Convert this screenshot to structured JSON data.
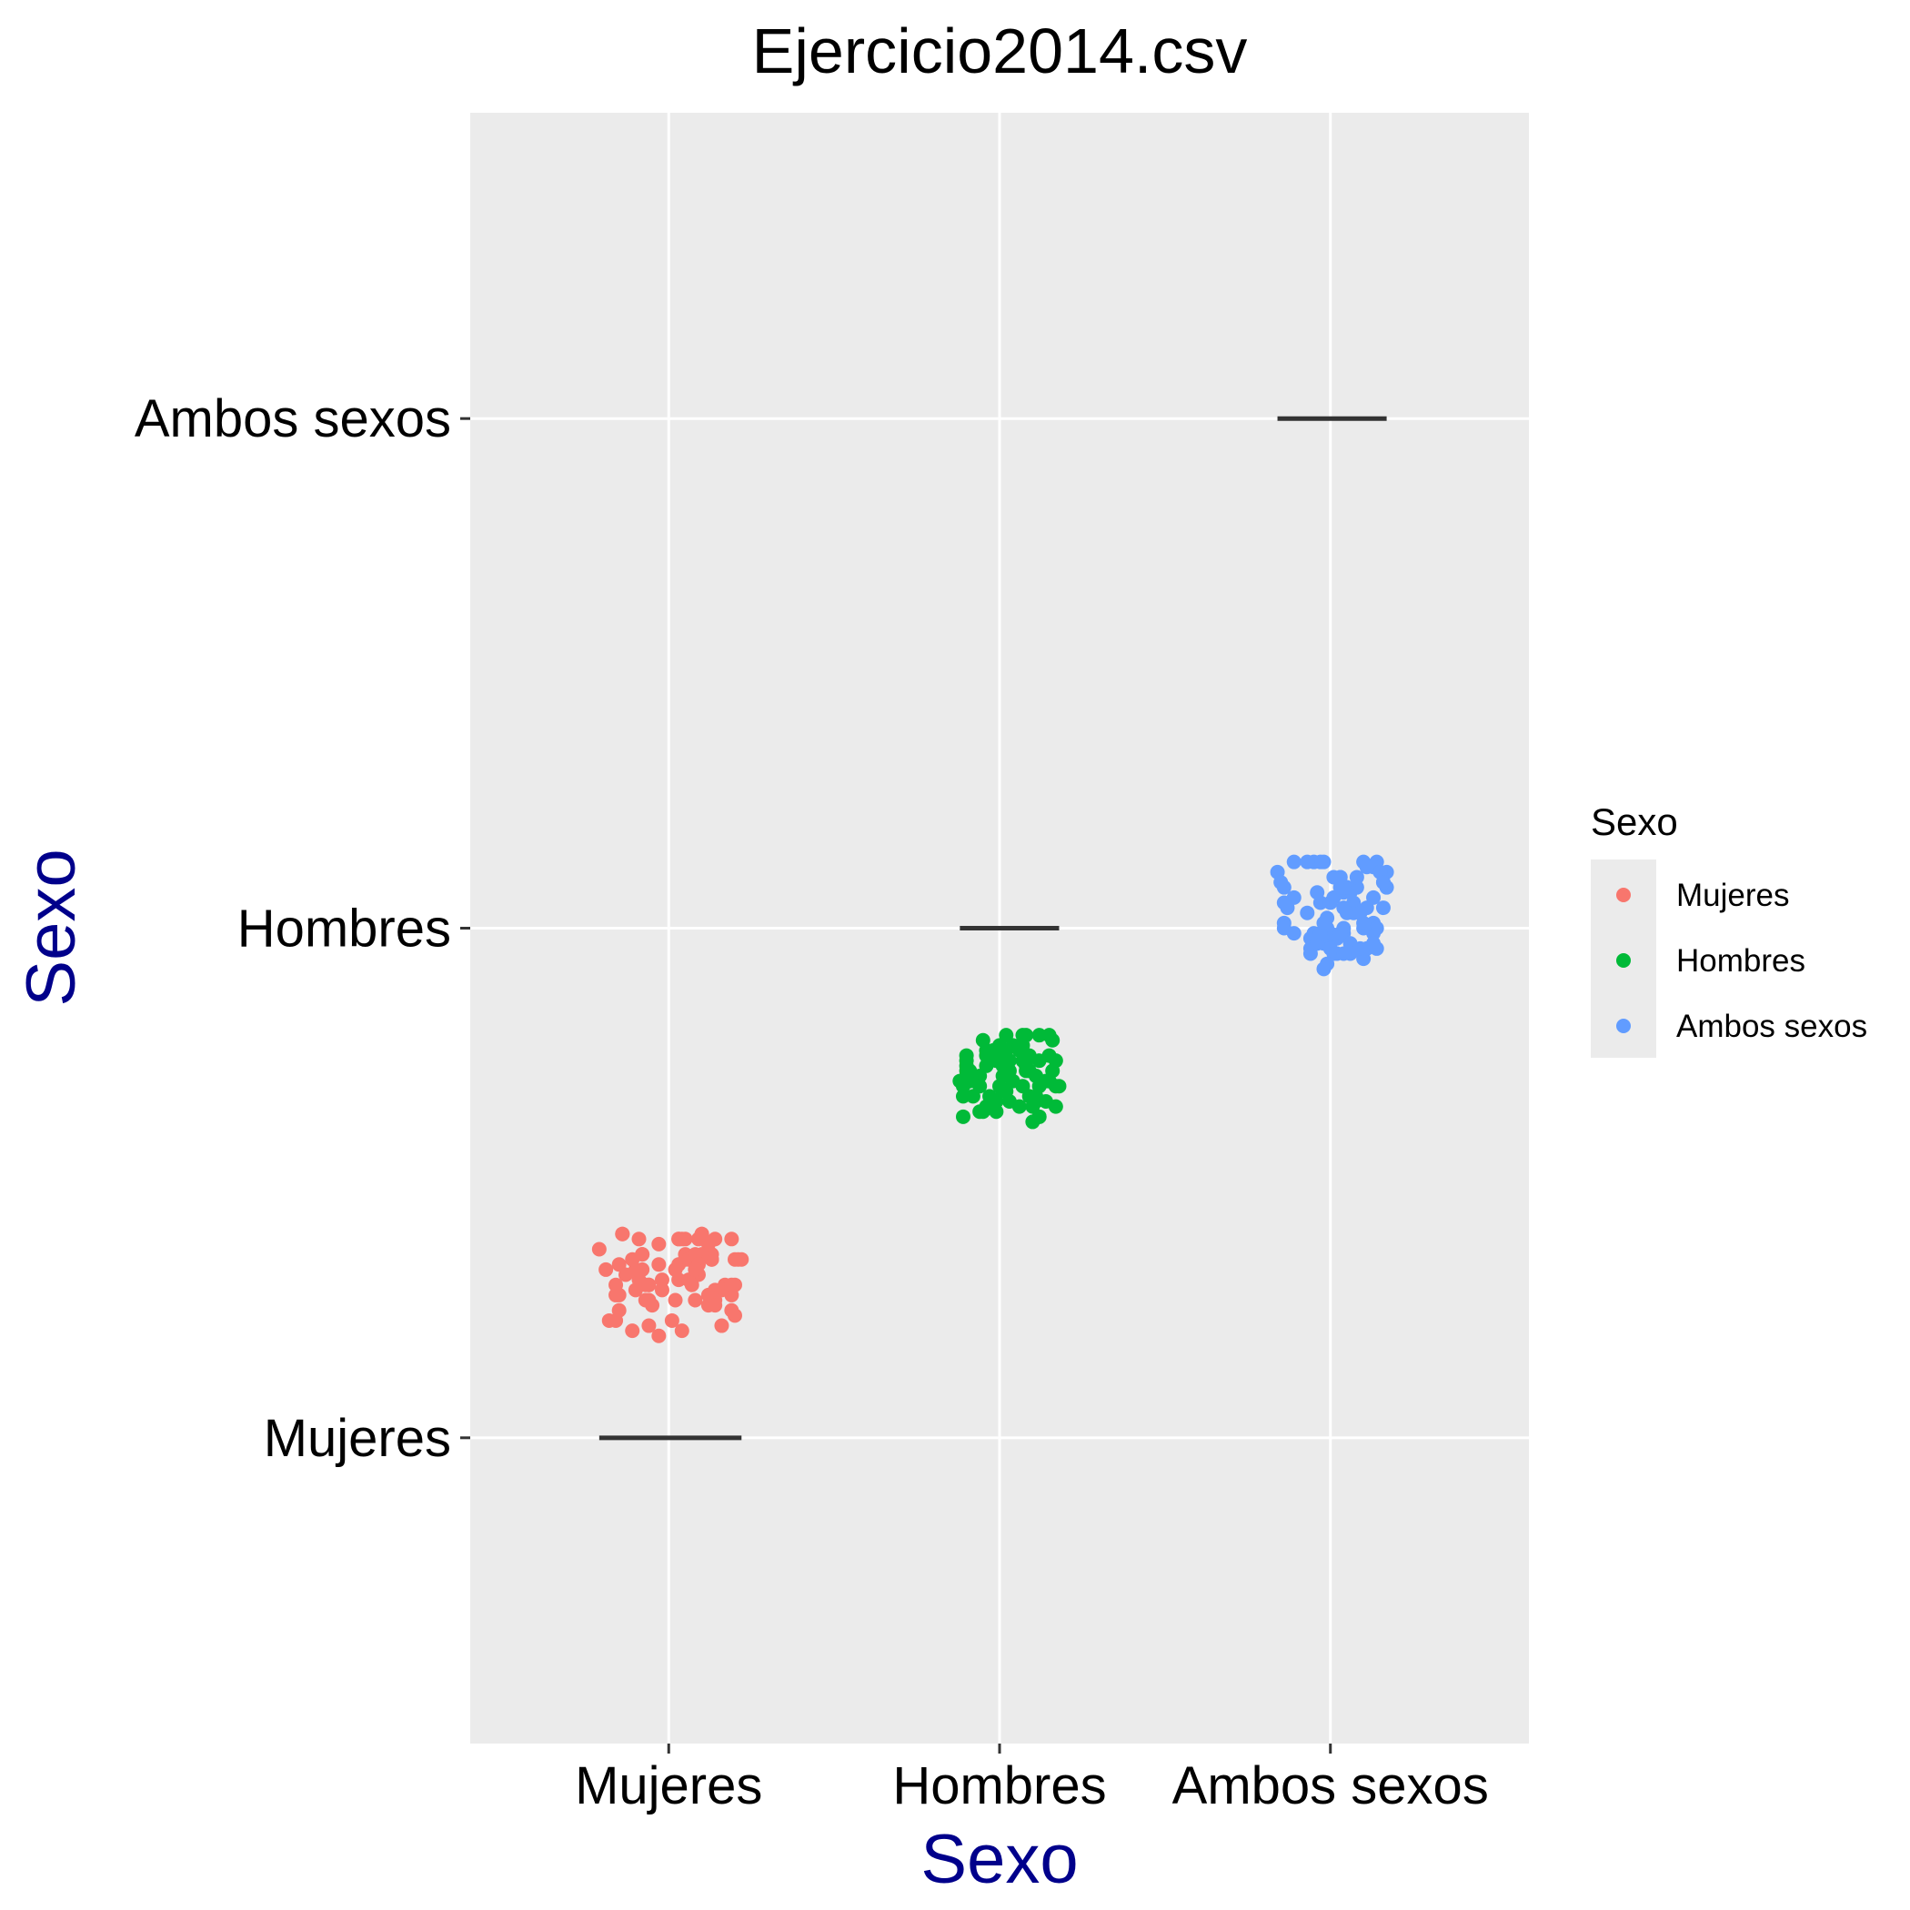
{
  "chart_data": {
    "type": "scatter",
    "title": "Ejercicio2014.csv",
    "xlabel": "Sexo",
    "ylabel": "Sexo",
    "categories": [
      "Mujeres",
      "Hombres",
      "Ambos sexos"
    ],
    "x_categories": [
      "Mujeres",
      "Hombres",
      "Ambos sexos"
    ],
    "y_categories": [
      "Mujeres",
      "Hombres",
      "Ambos sexos"
    ],
    "jitter": true,
    "median_lines": true,
    "grid": true,
    "axis_title_color": "#00008B",
    "legend": {
      "title": "Sexo",
      "position": "right",
      "entries": [
        "Mujeres",
        "Hombres",
        "Ambos sexos"
      ]
    },
    "series": [
      {
        "name": "Mujeres",
        "color": "#F8766D",
        "points": [
          [
            -0.15,
            0.34
          ],
          [
            0.03,
            0.39
          ],
          [
            0.04,
            0.39
          ],
          [
            -0.19,
            0.33
          ],
          [
            -0.07,
            0.27
          ],
          [
            0.21,
            0.35
          ],
          [
            0.22,
            0.35
          ],
          [
            0.1,
            0.4
          ],
          [
            0.14,
            0.39
          ],
          [
            0.13,
            0.35
          ],
          [
            -0.15,
            0.28
          ],
          [
            0.03,
            0.31
          ],
          [
            0.2,
            0.24
          ],
          [
            -0.13,
            0.32
          ],
          [
            -0.03,
            0.34
          ],
          [
            -0.21,
            0.37
          ],
          [
            0.2,
            0.35
          ],
          [
            -0.18,
            0.23
          ],
          [
            0.09,
            0.39
          ],
          [
            0.12,
            0.38
          ],
          [
            -0.06,
            0.3
          ],
          [
            0.01,
            0.23
          ],
          [
            -0.03,
            0.2
          ],
          [
            -0.16,
            0.3
          ],
          [
            0.2,
            0.3
          ],
          [
            -0.06,
            0.22
          ],
          [
            0.19,
            0.28
          ],
          [
            -0.14,
            0.4
          ],
          [
            0.05,
            0.35
          ],
          [
            -0.1,
            0.29
          ],
          [
            0.12,
            0.26
          ],
          [
            -0.02,
            0.31
          ],
          [
            0.19,
            0.39
          ],
          [
            -0.08,
            0.33
          ],
          [
            -0.09,
            0.39
          ],
          [
            0.17,
            0.3
          ],
          [
            0.13,
            0.35
          ],
          [
            -0.11,
            0.35
          ],
          [
            0.13,
            0.36
          ],
          [
            0.03,
            0.34
          ],
          [
            0.09,
            0.32
          ],
          [
            0.08,
            0.35
          ],
          [
            0.02,
            0.33
          ],
          [
            0.1,
            0.36
          ],
          [
            0.05,
            0.36
          ],
          [
            -0.09,
            0.31
          ],
          [
            -0.08,
            0.36
          ],
          [
            0.03,
            0.39
          ],
          [
            0.19,
            0.25
          ],
          [
            -0.16,
            0.28
          ],
          [
            0.06,
            0.35
          ],
          [
            0.08,
            0.36
          ],
          [
            -0.15,
            0.25
          ],
          [
            0.06,
            0.31
          ],
          [
            0.14,
            0.29
          ],
          [
            0.09,
            0.34
          ],
          [
            -0.07,
            0.3
          ],
          [
            -0.16,
            0.23
          ],
          [
            -0.06,
            0.27
          ],
          [
            0.12,
            0.28
          ],
          [
            0.16,
            0.29
          ],
          [
            -0.06,
            0.3
          ],
          [
            0.14,
            0.27
          ],
          [
            -0.03,
            0.38
          ],
          [
            0.08,
            0.27
          ],
          [
            -0.14,
            0.4
          ],
          [
            -0.11,
            0.21
          ],
          [
            0.19,
            0.3
          ],
          [
            0.05,
            0.39
          ],
          [
            -0.02,
            0.29
          ],
          [
            0.16,
            0.22
          ],
          [
            -0.05,
            0.26
          ],
          [
            0.02,
            0.27
          ],
          [
            0.08,
            0.33
          ],
          [
            0.14,
            0.26
          ],
          [
            0.04,
            0.21
          ],
          [
            -0.1,
            0.33
          ],
          [
            -0.08,
            0.36
          ],
          [
            0.07,
            0.3
          ],
          [
            0.1,
            0.4
          ]
        ]
      },
      {
        "name": "Hombres",
        "color": "#00BA38",
        "points": [
          [
            0.11,
            0.66
          ],
          [
            -0.06,
            0.64
          ],
          [
            0.02,
            0.74
          ],
          [
            0.07,
            0.79
          ],
          [
            0.16,
            0.78
          ],
          [
            -0.1,
            0.73
          ],
          [
            0.17,
            0.65
          ],
          [
            0.06,
            0.65
          ],
          [
            0.1,
            0.62
          ],
          [
            -0.12,
            0.7
          ],
          [
            0.15,
            0.75
          ],
          [
            0.12,
            0.79
          ],
          [
            -0.06,
            0.71
          ],
          [
            0.12,
            0.63
          ],
          [
            -0.03,
            0.74
          ],
          [
            -0.05,
            0.78
          ],
          [
            0.15,
            0.7
          ],
          [
            0.09,
            0.72
          ],
          [
            -0.03,
            0.67
          ],
          [
            0.18,
            0.69
          ],
          [
            0.12,
            0.74
          ],
          [
            0.16,
            0.72
          ],
          [
            0.08,
            0.73
          ],
          [
            -0.01,
            0.66
          ],
          [
            0.02,
            0.68
          ],
          [
            0.17,
            0.74
          ],
          [
            0.04,
            0.77
          ],
          [
            0.11,
            0.71
          ],
          [
            0.02,
            0.76
          ],
          [
            -0.04,
            0.65
          ],
          [
            0.07,
            0.69
          ],
          [
            0.07,
            0.74
          ],
          [
            -0.01,
            0.74
          ],
          [
            0.01,
            0.73
          ],
          [
            0.04,
            0.7
          ],
          [
            -0.04,
            0.76
          ],
          [
            0.15,
            0.7
          ],
          [
            -0.08,
            0.67
          ],
          [
            -0.04,
            0.73
          ],
          [
            -0.01,
            0.64
          ],
          [
            0.01,
            0.71
          ],
          [
            -0.1,
            0.72
          ],
          [
            0.03,
            0.72
          ],
          [
            0.14,
            0.7
          ],
          [
            0.06,
            0.77
          ],
          [
            0.0,
            0.69
          ],
          [
            -0.04,
            0.75
          ],
          [
            -0.1,
            0.74
          ],
          [
            -0.09,
            0.7
          ],
          [
            -0.02,
            0.76
          ],
          [
            0.01,
            0.68
          ],
          [
            0.07,
            0.77
          ],
          [
            -0.02,
            0.66
          ],
          [
            0.14,
            0.66
          ],
          [
            0.17,
            0.69
          ],
          [
            -0.11,
            0.63
          ],
          [
            0.09,
            0.67
          ],
          [
            0.01,
            0.76
          ],
          [
            0.02,
            0.79
          ],
          [
            -0.11,
            0.69
          ],
          [
            0.03,
            0.74
          ],
          [
            0.11,
            0.67
          ],
          [
            -0.11,
            0.67
          ],
          [
            0.09,
            0.75
          ],
          [
            0.03,
            0.66
          ],
          [
            0.08,
            0.79
          ],
          [
            -0.05,
            0.64
          ],
          [
            0.12,
            0.69
          ],
          [
            0.15,
            0.79
          ],
          [
            0.08,
            0.72
          ],
          [
            -0.1,
            0.71
          ],
          [
            -0.06,
            0.69
          ],
          [
            0.06,
            0.76
          ],
          [
            0.0,
            0.77
          ],
          [
            -0.1,
            0.75
          ],
          [
            -0.09,
            0.72
          ],
          [
            0.1,
            0.65
          ],
          [
            0.12,
            0.63
          ]
        ]
      },
      {
        "name": "Ambos sexos",
        "color": "#619CFF",
        "points": [
          [
            0.05,
            1.08
          ],
          [
            -0.11,
            1.13
          ],
          [
            -0.05,
            1.13
          ],
          [
            0.02,
            0.98
          ],
          [
            0.1,
            0.94
          ],
          [
            -0.07,
            1.03
          ],
          [
            0.06,
            1.07
          ],
          [
            -0.02,
            0.97
          ],
          [
            -0.01,
            1.0
          ],
          [
            0.16,
            1.04
          ],
          [
            -0.16,
            1.11
          ],
          [
            0.13,
            1.06
          ],
          [
            0.07,
            1.03
          ],
          [
            -0.05,
            0.99
          ],
          [
            -0.03,
            1.05
          ],
          [
            0.1,
            1.13
          ],
          [
            0.11,
            1.12
          ],
          [
            0.08,
            1.08
          ],
          [
            -0.02,
            1.13
          ],
          [
            -0.14,
            1.08
          ],
          [
            0.17,
            1.08
          ],
          [
            0.02,
            0.95
          ],
          [
            0.13,
            0.99
          ],
          [
            -0.15,
            1.09
          ],
          [
            0.07,
            1.05
          ],
          [
            0.04,
            1.07
          ],
          [
            -0.06,
            0.98
          ],
          [
            0.04,
            0.99
          ],
          [
            -0.03,
            1.13
          ],
          [
            0.05,
            1.08
          ],
          [
            0.0,
            0.96
          ],
          [
            0.14,
            1.13
          ],
          [
            0.0,
            0.99
          ],
          [
            0.01,
            1.06
          ],
          [
            0.13,
            1.01
          ],
          [
            0.16,
            1.09
          ],
          [
            0.08,
            1.1
          ],
          [
            -0.02,
            0.92
          ],
          [
            0.03,
            1.1
          ],
          [
            0.11,
            0.96
          ],
          [
            0.03,
            1.08
          ],
          [
            0.11,
            1.04
          ],
          [
            0.01,
            1.1
          ],
          [
            0.04,
            1.08
          ],
          [
            0.14,
            0.96
          ],
          [
            0.17,
            1.11
          ],
          [
            -0.14,
            1.01
          ],
          [
            0.13,
            1.12
          ],
          [
            0.01,
            0.95
          ],
          [
            0.06,
            0.97
          ],
          [
            0.06,
            0.95
          ],
          [
            -0.07,
            1.13
          ],
          [
            -0.01,
            1.02
          ],
          [
            0.14,
            1.0
          ],
          [
            0.1,
            1.0
          ],
          [
            0.15,
            1.11
          ],
          [
            -0.06,
            0.95
          ],
          [
            -0.06,
            0.96
          ],
          [
            -0.11,
            1.06
          ],
          [
            0.09,
            0.96
          ],
          [
            0.0,
            1.05
          ],
          [
            -0.04,
            0.97
          ],
          [
            -0.03,
            0.99
          ],
          [
            -0.13,
            1.04
          ],
          [
            0.04,
            1.0
          ],
          [
            -0.14,
            1.0
          ],
          [
            0.04,
            0.95
          ],
          [
            0.16,
            1.09
          ],
          [
            -0.01,
            0.93
          ],
          [
            0.13,
            0.97
          ],
          [
            0.03,
            0.99
          ],
          [
            -0.11,
            0.99
          ],
          [
            -0.14,
            1.05
          ],
          [
            0.1,
            1.01
          ],
          [
            -0.02,
            1.01
          ],
          [
            0.04,
            1.04
          ],
          [
            -0.04,
            1.07
          ],
          [
            0.05,
            1.03
          ],
          [
            0.09,
            1.03
          ],
          [
            0.03,
            1.1
          ]
        ]
      }
    ]
  }
}
